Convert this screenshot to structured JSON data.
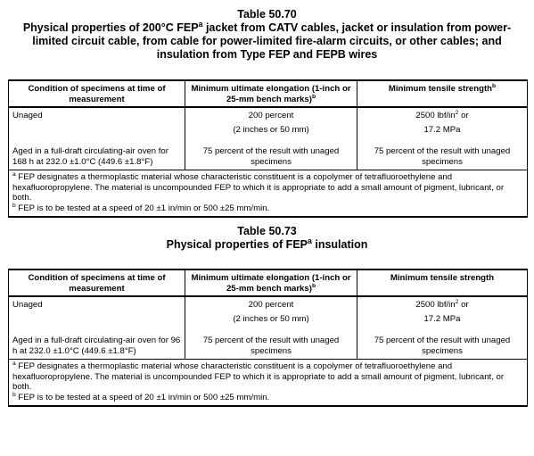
{
  "table1": {
    "number": "Table 50.70",
    "caption_lines": [
      "Physical properties of 200°C FEP",
      "jacket from CATV cables, jacket or insulation from power-limited circuit cable, from cable for power-limited fire-alarm circuits, or other cables; and insulation from Type FEP and FEPB wires"
    ],
    "caption_sup": "a",
    "headers": {
      "condition": "Condition of specimens at time of measurement",
      "elongation": "Minimum ultimate elongation (1-inch or 25-mm bench marks)",
      "elongation_sup": "b",
      "tensile": "Minimum tensile strength",
      "tensile_sup": "b"
    },
    "rows": {
      "unaged": {
        "condition": "Unaged",
        "elongation_1": "200 percent",
        "elongation_2": "(2 inches or 50 mm)",
        "tensile_1a": "2500 lbf/in",
        "tensile_1sup": "2",
        "tensile_1b": " or",
        "tensile_2": "17.2 MPa"
      },
      "aged": {
        "condition": "Aged in a full-draft circulating-air oven for 168 h at 232.0 ±1.0°C (449.6 ±1.8°F)",
        "elongation": "75 percent of the result with unaged specimens",
        "tensile": "75 percent of the result with unaged specimens"
      }
    },
    "notes": {
      "a_mark": "a",
      "a": " FEP designates a thermoplastic material whose characteristic constituent is a copolymer of tetrafluoroethylene and hexafluoropropylene. The material is uncompounded FEP to which it is appropriate to add a small amount of pigment, lubricant, or both.",
      "b_mark": "b",
      "b": " FEP is to be tested at a speed of 20 ±1 in/min or 500 ±25 mm/min."
    }
  },
  "table2": {
    "number": "Table 50.73",
    "caption_lines": [
      "Physical properties of FEP",
      " insulation"
    ],
    "caption_sup": "a",
    "headers": {
      "condition": "Condition of specimens at time of measurement",
      "elongation": "Minimum ultimate elongation (1-inch or 25-mm bench marks)",
      "elongation_sup": "b",
      "tensile": "Minimum tensile strength"
    },
    "rows": {
      "unaged": {
        "condition": "Unaged",
        "elongation_1": "200 percent",
        "elongation_2": "(2 inches or 50 mm)",
        "tensile_1a": "2500 lbf/in",
        "tensile_1sup": "2",
        "tensile_1b": " or",
        "tensile_2": "17.2 MPa"
      },
      "aged": {
        "condition": "Aged in a full-draft circulating-air oven for 96 h at 232.0 ±1.0°C (449.6 ±1.8°F)",
        "elongation": "75 percent of the result with unaged specimens",
        "tensile": "75 percent of the result with unaged specimens"
      }
    },
    "notes": {
      "a_mark": "a",
      "a": " FEP designates a thermoplastic material whose characteristic constituent is a copolymer of tetrafluoroethylene and hexafluoropropylene. The material is uncompounded FEP to which it is appropriate to add a small amount of pigment, lubricant, or both.",
      "b_mark": "b",
      "b": " FEP is to be tested at a speed of 20 ±1 in/min or 500 ±25 mm/min."
    }
  }
}
